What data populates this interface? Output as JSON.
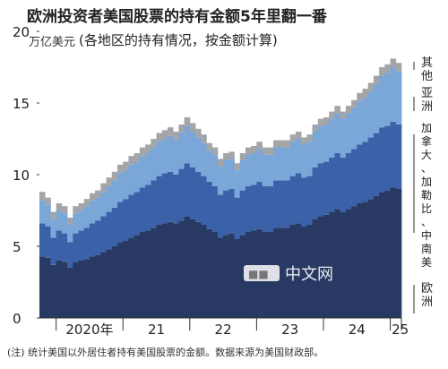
{
  "chart_data": {
    "type": "area",
    "stacked": true,
    "title": "欧洲投资者美国股票的持有金额5年里翻一番",
    "subtitle": "(各地区的持有情况，按金额计算)",
    "ylabel": "万亿美元",
    "ylim": [
      0,
      20
    ],
    "yticks": [
      0,
      5,
      10,
      15,
      20
    ],
    "x_tick_labels": [
      "2020年",
      "21",
      "22",
      "23",
      "24",
      "25"
    ],
    "x_start": "2019-10",
    "x_end": "2025-02",
    "x": [
      "2019-10",
      "2019-11",
      "2019-12",
      "2020-01",
      "2020-02",
      "2020-03",
      "2020-04",
      "2020-05",
      "2020-06",
      "2020-07",
      "2020-08",
      "2020-09",
      "2020-10",
      "2020-11",
      "2020-12",
      "2021-01",
      "2021-02",
      "2021-03",
      "2021-04",
      "2021-05",
      "2021-06",
      "2021-07",
      "2021-08",
      "2021-09",
      "2021-10",
      "2021-11",
      "2021-12",
      "2022-01",
      "2022-02",
      "2022-03",
      "2022-04",
      "2022-05",
      "2022-06",
      "2022-07",
      "2022-08",
      "2022-09",
      "2022-10",
      "2022-11",
      "2022-12",
      "2023-01",
      "2023-02",
      "2023-03",
      "2023-04",
      "2023-05",
      "2023-06",
      "2023-07",
      "2023-08",
      "2023-09",
      "2023-10",
      "2023-11",
      "2023-12",
      "2024-01",
      "2024-02",
      "2024-03",
      "2024-04",
      "2024-05",
      "2024-06",
      "2024-07",
      "2024-08",
      "2024-09",
      "2024-10",
      "2024-11",
      "2024-12",
      "2025-01",
      "2025-02"
    ],
    "series": [
      {
        "name": "欧洲",
        "color": "#283a63",
        "values": [
          4.3,
          4.2,
          3.7,
          4.0,
          3.9,
          3.5,
          3.9,
          4.0,
          4.1,
          4.3,
          4.4,
          4.6,
          4.8,
          5.0,
          5.3,
          5.4,
          5.6,
          5.8,
          6.0,
          6.1,
          6.3,
          6.5,
          6.6,
          6.7,
          6.6,
          6.8,
          7.1,
          6.9,
          6.7,
          6.5,
          6.2,
          6.0,
          5.6,
          5.8,
          5.9,
          5.5,
          5.8,
          6.0,
          6.1,
          6.2,
          6.0,
          6.0,
          6.3,
          6.3,
          6.3,
          6.5,
          6.6,
          6.4,
          6.5,
          6.9,
          7.1,
          7.2,
          7.4,
          7.6,
          7.4,
          7.6,
          7.8,
          8.0,
          8.1,
          8.3,
          8.5,
          8.8,
          8.9,
          9.1,
          9.0
        ]
      },
      {
        "name": "加拿大、加勒比、中南美",
        "color": "#3b62a8",
        "values": [
          2.3,
          2.2,
          1.9,
          2.1,
          2.0,
          1.8,
          2.0,
          2.1,
          2.2,
          2.3,
          2.4,
          2.5,
          2.6,
          2.7,
          2.8,
          2.9,
          3.0,
          3.0,
          3.1,
          3.2,
          3.3,
          3.4,
          3.5,
          3.5,
          3.4,
          3.6,
          3.7,
          3.6,
          3.5,
          3.4,
          3.3,
          3.2,
          3.0,
          3.1,
          3.1,
          2.9,
          3.1,
          3.2,
          3.2,
          3.3,
          3.2,
          3.2,
          3.3,
          3.3,
          3.3,
          3.4,
          3.5,
          3.4,
          3.4,
          3.6,
          3.7,
          3.7,
          3.8,
          3.9,
          3.8,
          3.9,
          4.0,
          4.1,
          4.2,
          4.3,
          4.4,
          4.5,
          4.5,
          4.6,
          4.5
        ]
      },
      {
        "name": "亚洲",
        "color": "#7aa7d8",
        "values": [
          1.6,
          1.5,
          1.3,
          1.4,
          1.4,
          1.2,
          1.4,
          1.4,
          1.5,
          1.6,
          1.6,
          1.7,
          1.8,
          1.9,
          2.0,
          2.0,
          2.1,
          2.1,
          2.2,
          2.2,
          2.3,
          2.4,
          2.4,
          2.5,
          2.4,
          2.5,
          2.6,
          2.5,
          2.4,
          2.3,
          2.2,
          2.2,
          2.0,
          2.1,
          2.1,
          1.9,
          2.1,
          2.2,
          2.2,
          2.3,
          2.2,
          2.2,
          2.3,
          2.3,
          2.3,
          2.4,
          2.4,
          2.3,
          2.4,
          2.5,
          2.6,
          2.6,
          2.7,
          2.8,
          2.7,
          2.8,
          2.9,
          3.0,
          3.1,
          3.2,
          3.4,
          3.6,
          3.7,
          3.8,
          3.7
        ]
      },
      {
        "name": "其他",
        "color": "#a3a5a8",
        "values": [
          0.6,
          0.5,
          0.5,
          0.5,
          0.5,
          0.5,
          0.5,
          0.5,
          0.5,
          0.5,
          0.5,
          0.6,
          0.6,
          0.6,
          0.6,
          0.6,
          0.6,
          0.6,
          0.6,
          0.6,
          0.6,
          0.6,
          0.6,
          0.6,
          0.6,
          0.6,
          0.6,
          0.6,
          0.6,
          0.6,
          0.5,
          0.5,
          0.5,
          0.5,
          0.5,
          0.5,
          0.5,
          0.5,
          0.5,
          0.5,
          0.5,
          0.5,
          0.5,
          0.5,
          0.5,
          0.5,
          0.5,
          0.5,
          0.5,
          0.5,
          0.5,
          0.5,
          0.5,
          0.5,
          0.5,
          0.5,
          0.5,
          0.6,
          0.6,
          0.6,
          0.6,
          0.6,
          0.6,
          0.6,
          0.6
        ]
      }
    ],
    "legend_placement": "right, labels beside stacked layers",
    "grid": false,
    "note": "(注) 统计美国以外居住者持有美国股票的金额。数据来源为美国财政部。",
    "watermark": "中文网"
  }
}
